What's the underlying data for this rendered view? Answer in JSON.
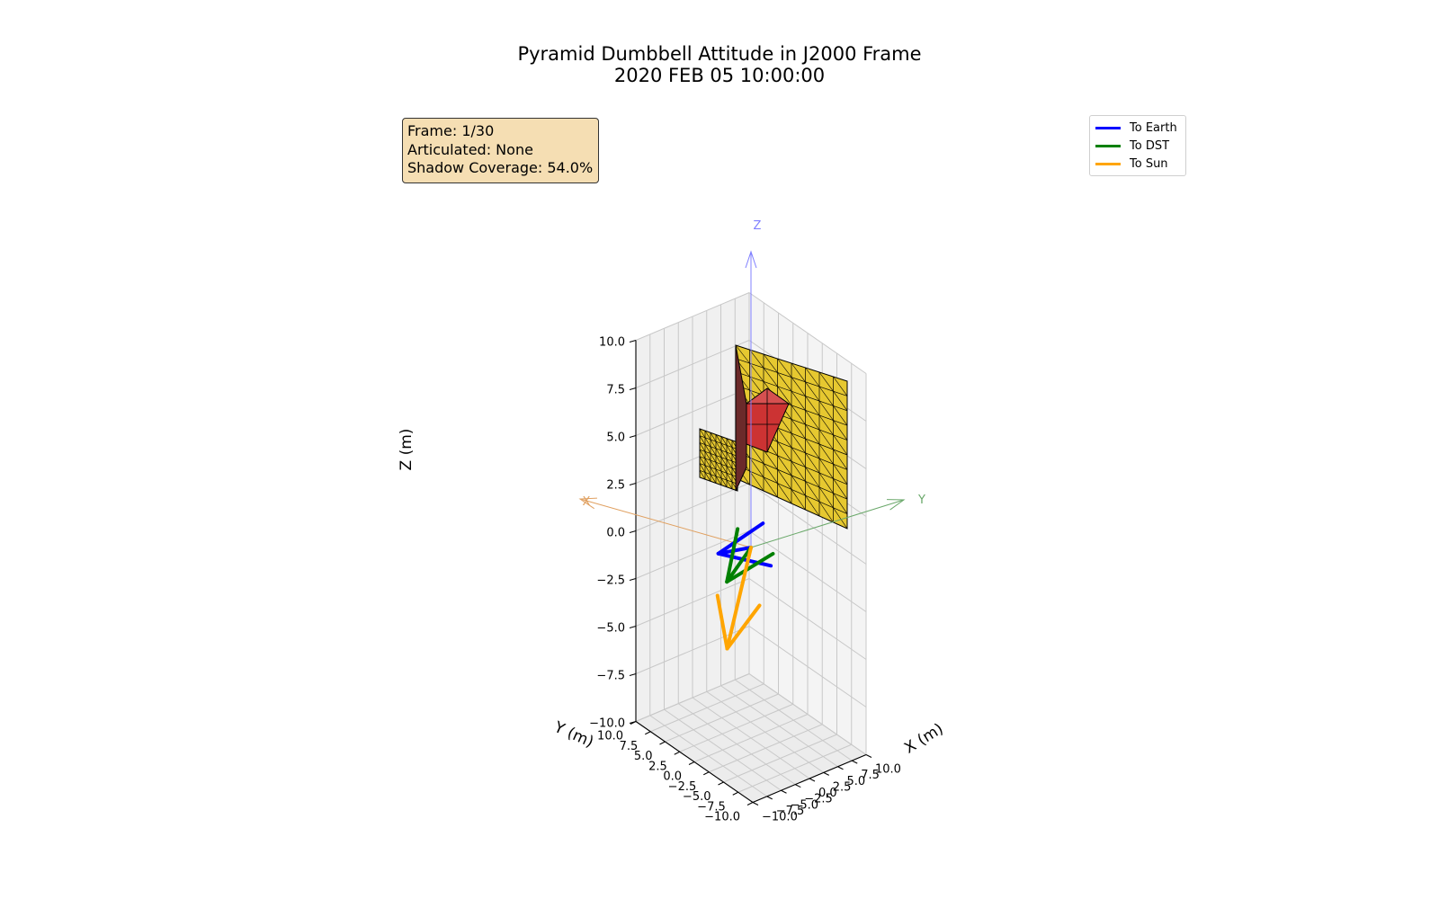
{
  "chart_data": {
    "type": "3d-scene",
    "title": "Pyramid Dumbbell Attitude in J2000 Frame",
    "subtitle": "2020 FEB 05 10:00:00",
    "xlabel": "X (m)",
    "ylabel": "Y (m)",
    "zlabel": "Z (m)",
    "xlim": [
      -10,
      10
    ],
    "ylim": [
      -10,
      10
    ],
    "zlim": [
      -10,
      10
    ],
    "xticks": [
      "−10.0",
      "−7.5",
      "−5.0",
      "−2.5",
      "0.0",
      "2.5",
      "5.0",
      "7.5",
      "10.0"
    ],
    "yticks": [
      "−10.0",
      "−7.5",
      "−5.0",
      "−2.5",
      "0.0",
      "2.5",
      "5.0",
      "7.5",
      "10.0"
    ],
    "zticks": [
      "−10.0",
      "−7.5",
      "−5.0",
      "−2.5",
      "0.0",
      "2.5",
      "5.0",
      "7.5",
      "10.0"
    ],
    "grid": true,
    "info": {
      "frame": "Frame: 1/30",
      "articulated": "Articulated: None",
      "shadow": "Shadow Coverage: 54.0%"
    },
    "legend_position": "top-right",
    "series": [
      {
        "name": "To Earth",
        "color": "#0000ff",
        "vector": [
          -8.5,
          -3.0,
          -2.5
        ]
      },
      {
        "name": "To DST",
        "color": "#008000",
        "vector": [
          -8.0,
          -4.0,
          -4.0
        ]
      },
      {
        "name": "To Sun",
        "color": "#ffa500",
        "vector": [
          -6.5,
          -2.5,
          -7.0
        ]
      }
    ],
    "body_axes": [
      {
        "label": "Z",
        "color": "#8080ff"
      },
      {
        "label": "Y",
        "color": "#6aa86a"
      },
      {
        "label": "X",
        "color": "#e0a060"
      }
    ],
    "colors": {
      "panel": "#e6c830",
      "core": "#cc3333",
      "mesh": "#000000"
    }
  }
}
